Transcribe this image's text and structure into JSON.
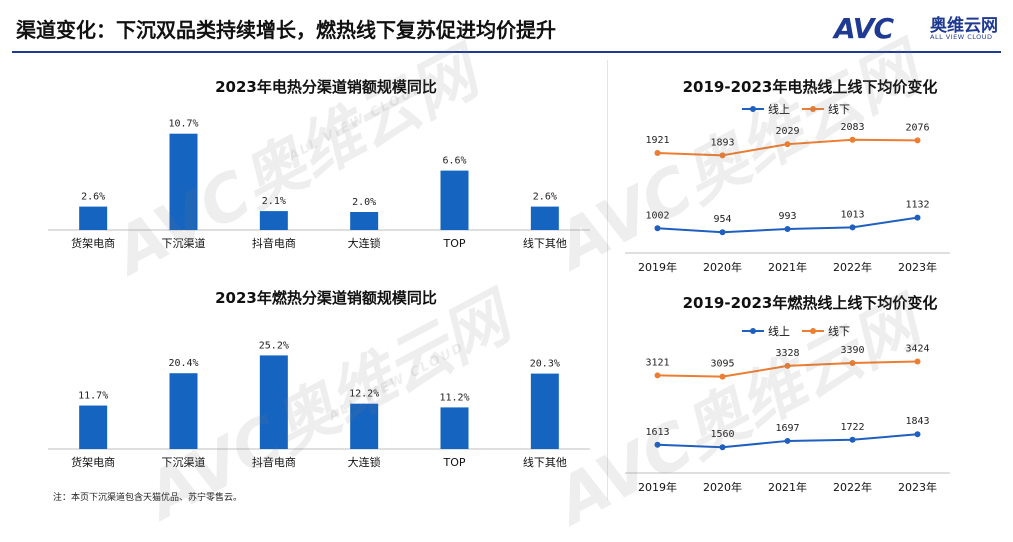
{
  "page": {
    "title": "渠道变化：下沉双品类持续增长，燃热线下复苏促进均价提升",
    "footnote": "注：本页下沉渠道包含天猫优品、苏宁零售云。"
  },
  "logo": {
    "brand": "AVC",
    "name_cn": "奥维云网",
    "name_en": "ALL VIEW CLOUD"
  },
  "watermark": {
    "brand": "AVC",
    "name_cn": "奥维云网",
    "name_en": "ALL VIEW CLOUD"
  },
  "colors": {
    "bar": "#1565c0",
    "online": "#1f5fbf",
    "offline": "#ed7d31",
    "title_rule": "#1f3a93"
  },
  "chart_data": [
    {
      "id": "electric-channel-growth",
      "type": "bar",
      "title": "2023年电热分渠道销额规模同比",
      "categories": [
        "货架电商",
        "下沉渠道",
        "抖音电商",
        "大连锁",
        "TOP",
        "线下其他"
      ],
      "values": [
        2.6,
        10.7,
        2.1,
        2.0,
        6.6,
        2.6
      ],
      "labels": [
        "2.6%",
        "10.7%",
        "2.1%",
        "2.0%",
        "6.6%",
        "2.6%"
      ],
      "unit": "%",
      "ylim": [
        0,
        12
      ],
      "grid": false
    },
    {
      "id": "gas-channel-growth",
      "type": "bar",
      "title": "2023年燃热分渠道销额规模同比",
      "categories": [
        "货架电商",
        "下沉渠道",
        "抖音电商",
        "大连锁",
        "TOP",
        "线下其他"
      ],
      "values": [
        11.7,
        20.4,
        25.2,
        12.2,
        11.2,
        20.3
      ],
      "labels": [
        "11.7%",
        "20.4%",
        "25.2%",
        "12.2%",
        "11.2%",
        "20.3%"
      ],
      "unit": "%",
      "ylim": [
        0,
        28
      ],
      "grid": false
    },
    {
      "id": "electric-avg-price",
      "type": "line",
      "title": "2019-2023年电热线上线下均价变化",
      "x": [
        "2019年",
        "2020年",
        "2021年",
        "2022年",
        "2023年"
      ],
      "series": [
        {
          "name": "线上",
          "values": [
            1002,
            954,
            993,
            1013,
            1132
          ]
        },
        {
          "name": "线下",
          "values": [
            1921,
            1893,
            2029,
            2083,
            2076
          ]
        }
      ],
      "ylim": [
        700,
        2300
      ],
      "legend": "top-left",
      "grid": false
    },
    {
      "id": "gas-avg-price",
      "type": "line",
      "title": "2019-2023年燃热线上线下均价变化",
      "x": [
        "2019年",
        "2020年",
        "2021年",
        "2022年",
        "2023年"
      ],
      "series": [
        {
          "name": "线上",
          "values": [
            1613,
            1560,
            1697,
            1722,
            1843
          ]
        },
        {
          "name": "线下",
          "values": [
            3121,
            3095,
            3328,
            3390,
            3424
          ]
        }
      ],
      "ylim": [
        1000,
        4000
      ],
      "legend": "top-left",
      "grid": false
    }
  ]
}
